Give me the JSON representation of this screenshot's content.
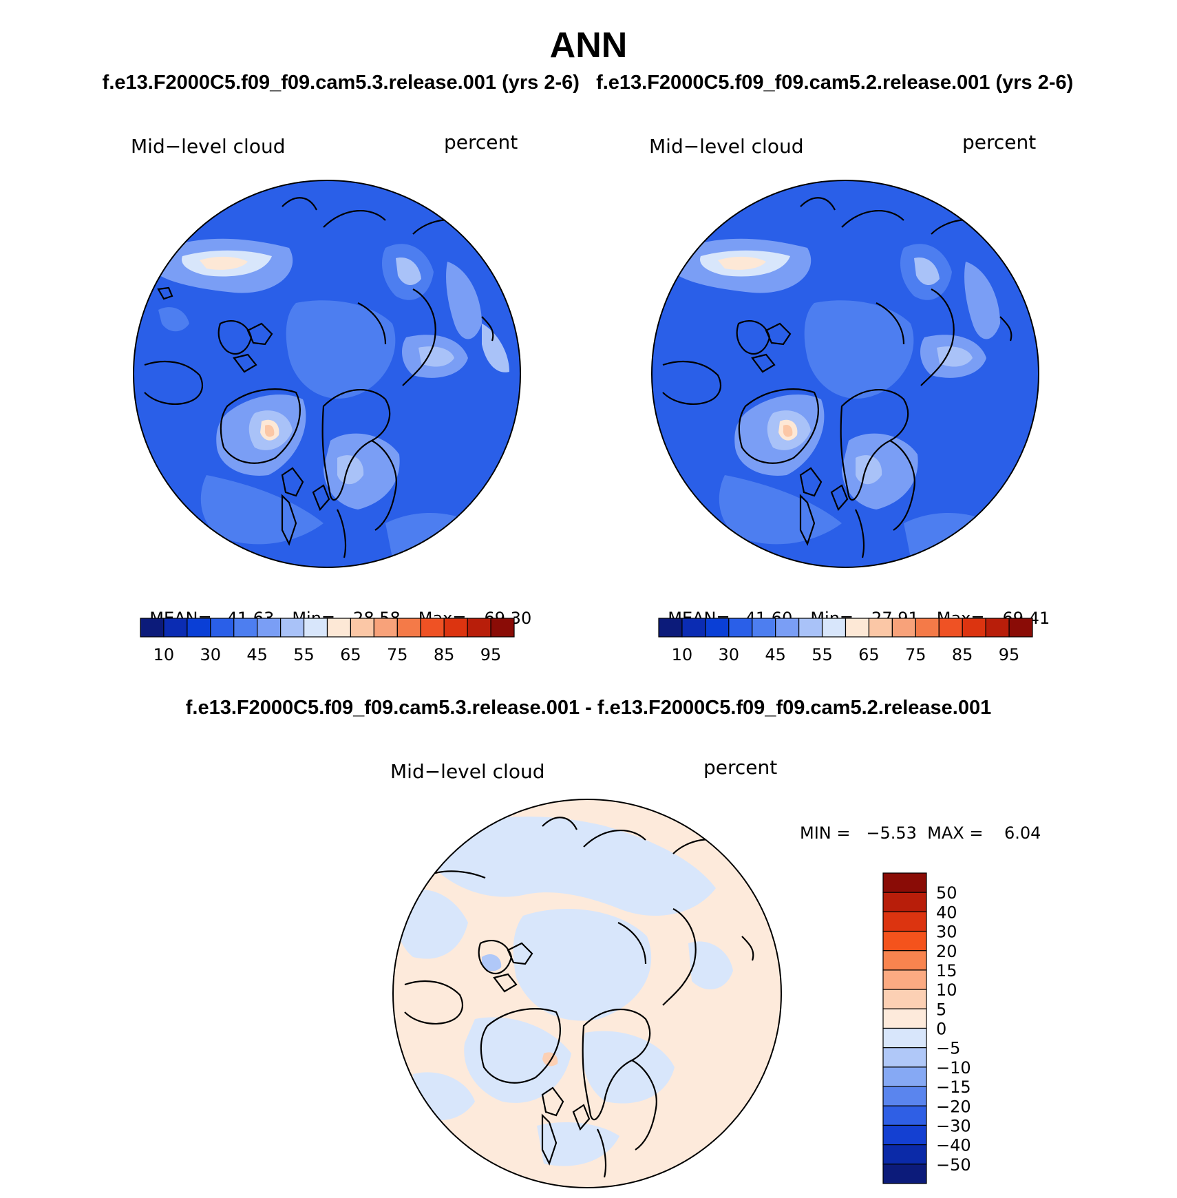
{
  "page": {
    "title": "ANN",
    "subtitle_left": "f.e13.F2000C5.f09_f09.cam5.3.release.001 (yrs 2-6)",
    "subtitle_right": "f.e13.F2000C5.f09_f09.cam5.2.release.001 (yrs 2-6)",
    "diff_title": "f.e13.F2000C5.f09_f09.cam5.3.release.001 - f.e13.F2000C5.f09_f09.cam5.2.release.001"
  },
  "chart_data": [
    {
      "type": "heatmap",
      "projection": "north polar stereographic",
      "variable": "Mid−level cloud",
      "units": "percent",
      "stats": {
        "mean_label": "MEAN=",
        "mean": "41.63",
        "min_label": "Min=",
        "min": "28.58",
        "max_label": "Max=",
        "max": "69.30"
      },
      "levels": [
        "10",
        "30",
        "45",
        "55",
        "65",
        "75",
        "85",
        "95"
      ],
      "colors": [
        "#0c1b7a",
        "#0b2cb3",
        "#0a3fd6",
        "#2a5fe8",
        "#4d7ef0",
        "#7a9ef5",
        "#a9c2f8",
        "#d8e6fb",
        "#fde8d6",
        "#fbc7a6",
        "#f8a27a",
        "#f47a48",
        "#ef5224",
        "#dc3410",
        "#b81e0a",
        "#8a0c06"
      ]
    },
    {
      "type": "heatmap",
      "projection": "north polar stereographic",
      "variable": "Mid−level cloud",
      "units": "percent",
      "stats": {
        "mean_label": "MEAN=",
        "mean": "41.60",
        "min_label": "Min=",
        "min": "27.91",
        "max_label": "Max=",
        "max": "69.41"
      },
      "levels": [
        "10",
        "30",
        "45",
        "55",
        "65",
        "75",
        "85",
        "95"
      ],
      "colors": [
        "#0c1b7a",
        "#0b2cb3",
        "#0a3fd6",
        "#2a5fe8",
        "#4d7ef0",
        "#7a9ef5",
        "#a9c2f8",
        "#d8e6fb",
        "#fde8d6",
        "#fbc7a6",
        "#f8a27a",
        "#f47a48",
        "#ef5224",
        "#dc3410",
        "#b81e0a",
        "#8a0c06"
      ]
    },
    {
      "type": "heatmap",
      "projection": "north polar stereographic",
      "variable": "Mid−level cloud",
      "units": "percent",
      "range_text": "MIN =   −5.53  MAX =    6.04",
      "levels": [
        "50",
        "40",
        "30",
        "20",
        "15",
        "10",
        "5",
        "0",
        "−5",
        "−10",
        "−15",
        "−20",
        "−30",
        "−40",
        "−50"
      ],
      "colors": [
        "#8a0c06",
        "#b81e0a",
        "#dc3410",
        "#f4531c",
        "#f8844f",
        "#fbaa82",
        "#fcd0b4",
        "#fdeadb",
        "#d8e6fb",
        "#b0c8f8",
        "#86a9f4",
        "#5a85ee",
        "#2f5fe5",
        "#1440d2",
        "#0b2aa8",
        "#0c1b7a"
      ]
    }
  ]
}
